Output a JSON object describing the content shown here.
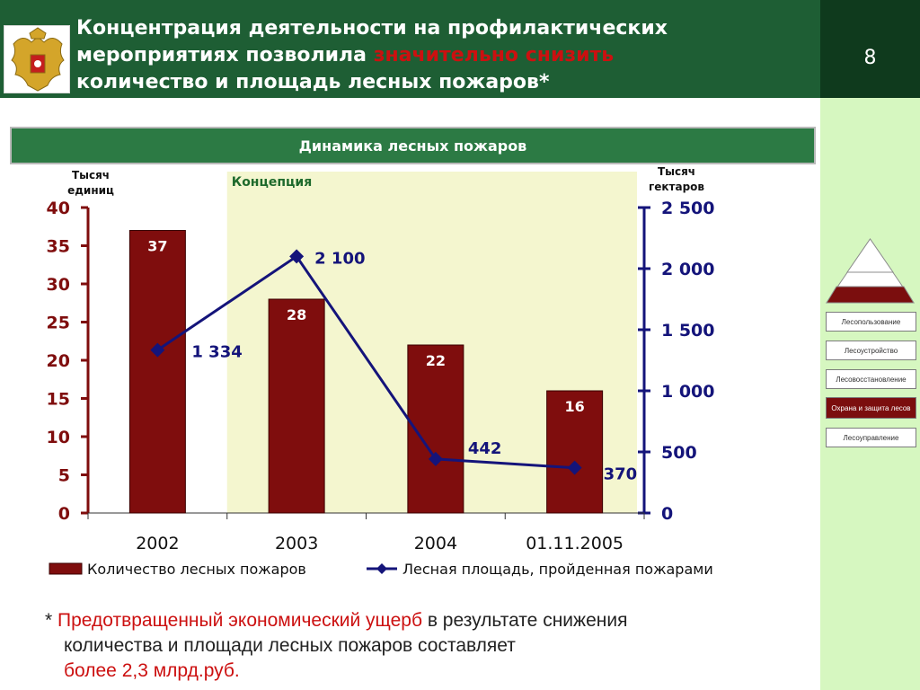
{
  "header": {
    "title_line1": "Концентрация деятельности на профилактических",
    "title_line2_start": "мероприятиях позволила ",
    "title_line2_highlight": "значительно снизить",
    "title_line3": "количество  и площадь лесных пожаров*",
    "page_number": "8",
    "emblem_icon": "russian-coat-of-arms-icon"
  },
  "sidebar": {
    "items": [
      {
        "label": "Лесопользование",
        "active": false
      },
      {
        "label": "Лесоустройство",
        "active": false
      },
      {
        "label": "Лесовосстановление",
        "active": false
      },
      {
        "label": "Охрана и защита  лесов",
        "active": true
      },
      {
        "label": "Лесоуправление",
        "active": false
      }
    ],
    "pyramid_icon": "pyramid-icon"
  },
  "subtitle": "Динамика лесных пожаров",
  "chart_data": {
    "type": "bar",
    "categories": [
      "2002",
      "2003",
      "2004",
      "01.11.2005"
    ],
    "ylabel_left": "Тысяч единиц",
    "ylabel_right": "Тысяч гектаров",
    "ylim_left": [
      0,
      40
    ],
    "yticks_left": [
      0,
      5,
      10,
      15,
      20,
      25,
      30,
      35,
      40
    ],
    "ylim_right": [
      0,
      2500
    ],
    "yticks_right": [
      0,
      500,
      1000,
      1500,
      2000,
      2500
    ],
    "yticks_right_labels": [
      "0",
      "500",
      "1 000",
      "1 500",
      "2 000",
      "2 500"
    ],
    "highlight_label": "Концепция",
    "highlight_from_category": "2003",
    "series": [
      {
        "name": "Количество лесных пожаров",
        "type": "bar",
        "axis": "left",
        "values": [
          37,
          28,
          22,
          16
        ],
        "labels": [
          "37",
          "28",
          "22",
          "16"
        ],
        "color": "#7f0d0d"
      },
      {
        "name": "Лесная площадь, пройденная пожарами",
        "type": "line",
        "axis": "right",
        "values": [
          1334,
          2100,
          442,
          370
        ],
        "labels": [
          "1 334",
          "2 100",
          "442",
          "370"
        ],
        "color": "#14147a"
      }
    ],
    "colors": {
      "axis_left": "#7f0d0d",
      "axis_right": "#14147a",
      "highlight": "#f4f6cf"
    }
  },
  "footnote": {
    "star": "* ",
    "red1": "Предотвращенный экономический ущерб",
    "text1": " в результате снижения",
    "line2": "количества и площади лесных пожаров составляет",
    "red2": "более 2,3 млрд.руб."
  }
}
